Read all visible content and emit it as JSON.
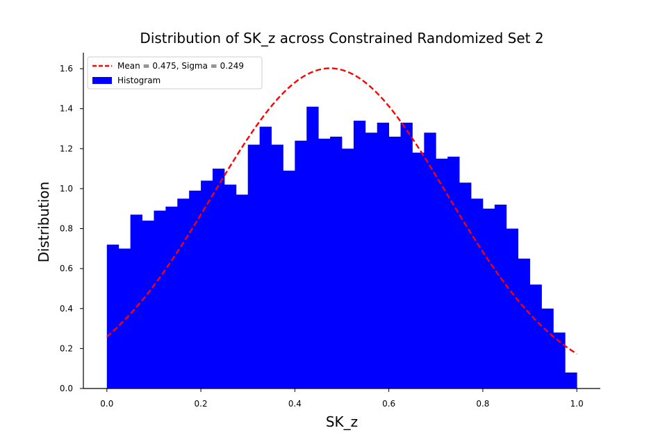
{
  "chart_data": {
    "type": "bar",
    "title": "Distribution of SK_z across Constrained Randomized Set 2",
    "xlabel": "SK_z",
    "ylabel": "Distribution",
    "xlim": [
      -0.05,
      1.05
    ],
    "ylim": [
      0.0,
      1.68
    ],
    "x_ticks": [
      0.0,
      0.2,
      0.4,
      0.6,
      0.8,
      1.0
    ],
    "x_tick_labels": [
      "0.0",
      "0.2",
      "0.4",
      "0.6",
      "0.8",
      "1.0"
    ],
    "y_ticks": [
      0.0,
      0.2,
      0.4,
      0.6,
      0.8,
      1.0,
      1.2,
      1.4,
      1.6
    ],
    "y_tick_labels": [
      "0.0",
      "0.2",
      "0.4",
      "0.6",
      "0.8",
      "1.0",
      "1.2",
      "1.4",
      "1.6"
    ],
    "grid": false,
    "legend": {
      "position": "top-left",
      "entries": [
        {
          "label": "Mean = 0.475, Sigma = 0.249",
          "color": "#ff0000",
          "style": "dashed-line"
        },
        {
          "label": "Histogram",
          "color": "#0000ff",
          "style": "patch"
        }
      ]
    },
    "series": [
      {
        "name": "Histogram",
        "kind": "histogram",
        "color": "#0000ff",
        "bin_edges": [
          0.0,
          0.025,
          0.05,
          0.075,
          0.1,
          0.125,
          0.15,
          0.175,
          0.2,
          0.225,
          0.25,
          0.275,
          0.3,
          0.325,
          0.35,
          0.375,
          0.4,
          0.425,
          0.45,
          0.475,
          0.5,
          0.525,
          0.55,
          0.575,
          0.6,
          0.625,
          0.65,
          0.675,
          0.7,
          0.725,
          0.75,
          0.775,
          0.8,
          0.825,
          0.85,
          0.875,
          0.9,
          0.925,
          0.95,
          0.975,
          1.0
        ],
        "values": [
          0.72,
          0.7,
          0.87,
          0.84,
          0.89,
          0.91,
          0.95,
          0.99,
          1.04,
          1.1,
          1.02,
          0.97,
          1.22,
          1.31,
          1.22,
          1.09,
          1.24,
          1.41,
          1.25,
          1.26,
          1.2,
          1.34,
          1.28,
          1.33,
          1.26,
          1.33,
          1.18,
          1.28,
          1.15,
          1.16,
          1.03,
          0.95,
          0.9,
          0.92,
          0.8,
          0.65,
          0.52,
          0.4,
          0.28,
          0.08
        ]
      },
      {
        "name": "Mean = 0.475, Sigma = 0.249",
        "kind": "normal-pdf",
        "color": "#ff0000",
        "line_style": "dashed",
        "mean": 0.475,
        "sigma": 0.249,
        "x_range": [
          0.0,
          1.0
        ]
      }
    ]
  }
}
